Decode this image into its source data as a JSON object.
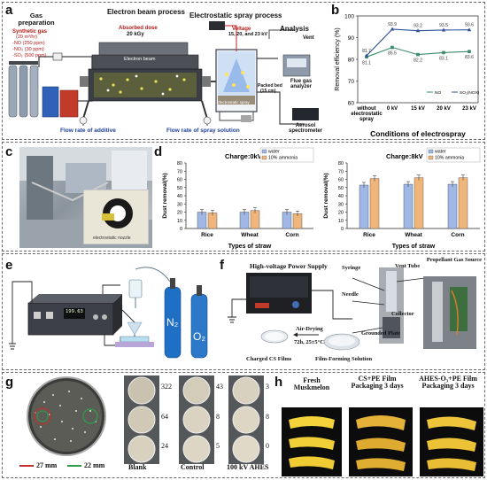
{
  "panels": {
    "a": {
      "label": "a",
      "gas_title": "Gas preparation",
      "synthetic_gas": "Synthetic gas",
      "flow": "(20 m³/hr)",
      "no": "-NO (250 ppm)",
      "nox": "-NO₂ (30 ppm)",
      "so2": "-SO₂ (500 ppm)",
      "ebeam_title": "Electron beam process",
      "absorbed": "Absorbed dose",
      "dose": "20 kGy",
      "electron_beam": "Electron beam",
      "spray_title": "Electrostatic spray process",
      "voltage": "Voltage",
      "voltage_vals": "15, 20, and 23 kV",
      "packed_bed": "Packed bed",
      "packed_bed_dim": "(15 cm)",
      "electrostatic_spray": "Electrostatic spray",
      "analysis_title": "Analysis",
      "vent": "Vent",
      "flue_gas": "Flue gas analyzer",
      "aerosol": "Aerosol spectrometer",
      "flow_additive": "Flow rate of additive",
      "flow_spray": "Flow rate of spray solution"
    },
    "b": {
      "label": "b",
      "ylabel": "Removal efficiency (%)",
      "xlabel": "Conditions of electrospray",
      "legend": [
        "NO",
        "SO₂(NOX)"
      ]
    },
    "c": {
      "label": "c",
      "inset_caption": "electrostatic nozzle"
    },
    "d": {
      "label": "d"
    },
    "e": {
      "label": "e",
      "n2": "N₂",
      "o2": "O₂",
      "display": "199.63"
    },
    "f": {
      "label": "f",
      "hv_supply": "High-voltage Power Supply",
      "syringe": "Syringe",
      "needle": "Needle",
      "vent_tube": "Vent Tube",
      "propellant": "Propellant Gas Source",
      "collector": "Collector",
      "grounded": "Grounded Plate",
      "air_drying": "Air-Drying",
      "drying_cond": "72h, 25±5°C",
      "charged_films": "Charged CS Films",
      "forming_solution": "Film-Forming Solution"
    },
    "g": {
      "label": "g",
      "legend_27": "27 mm",
      "legend_22": "22 mm",
      "blank": "Blank",
      "control": "Control",
      "ahes": "100 kV AHES",
      "blank_counts": [
        "322",
        "64",
        "24"
      ],
      "control_counts": [
        "43",
        "8",
        "5"
      ],
      "ahes_counts": [
        "3",
        "8",
        "0"
      ]
    },
    "h": {
      "label": "h",
      "fresh": "Fresh Muskmelon",
      "cspe": "CS+PE Film Packaging 3 days",
      "ahes": "AHES-O₃+PE Film Packaging 3 days"
    }
  },
  "chart_data": [
    {
      "type": "line",
      "id": "b",
      "categories": [
        "without electrostatic spray",
        "0 kV",
        "15 kV",
        "20 kV",
        "23 kV"
      ],
      "xlabel": "Conditions of electrospray",
      "ylabel": "Removal efficiency (%)",
      "ylim": [
        60,
        100
      ],
      "yticks": [
        60,
        70,
        80,
        90,
        100
      ],
      "legend_position": "bottom-right",
      "series": [
        {
          "name": "NO",
          "color": "#3a8a6a",
          "values": [
            81.1,
            85.5,
            82.2,
            83.1,
            83.6
          ],
          "labels": [
            "81.1",
            "85.5",
            "82.2",
            "83.1",
            "83.6"
          ]
        },
        {
          "name": "SO₂(NOX)",
          "color": "#2f4f9a",
          "values": [
            81.7,
            93.9,
            93.2,
            93.5,
            93.6
          ],
          "labels": [
            "81.7",
            "93.9",
            "93.2",
            "93.5",
            "93.6"
          ]
        }
      ]
    },
    {
      "type": "bar",
      "id": "d-0kV",
      "title": "Charge:0kV",
      "categories": [
        "Rice",
        "Wheat",
        "Corn"
      ],
      "xlabel": "Types of straw",
      "ylabel": "Dust removal(%)",
      "ylim": [
        0,
        80
      ],
      "yticks": [
        0,
        10,
        20,
        30,
        40,
        50,
        60,
        70,
        80
      ],
      "legend_position": "top-right",
      "series": [
        {
          "name": "water",
          "color": "#9fb8e6",
          "values": [
            20,
            20,
            20
          ]
        },
        {
          "name": "10% ammonia",
          "color": "#f0b57a",
          "values": [
            19,
            22,
            18
          ]
        }
      ]
    },
    {
      "type": "bar",
      "id": "d-8kV",
      "title": "Charge:8kV",
      "categories": [
        "Rice",
        "Wheat",
        "Corn"
      ],
      "xlabel": "Types of straw",
      "ylabel": "Dust removal(%)",
      "ylim": [
        0,
        80
      ],
      "yticks": [
        0,
        10,
        20,
        30,
        40,
        50,
        60,
        70,
        80
      ],
      "legend_position": "top-right",
      "series": [
        {
          "name": "water",
          "color": "#9fb8e6",
          "values": [
            53,
            54,
            54
          ]
        },
        {
          "name": "10% ammonia",
          "color": "#f0b57a",
          "values": [
            61,
            62,
            62
          ]
        }
      ]
    }
  ]
}
